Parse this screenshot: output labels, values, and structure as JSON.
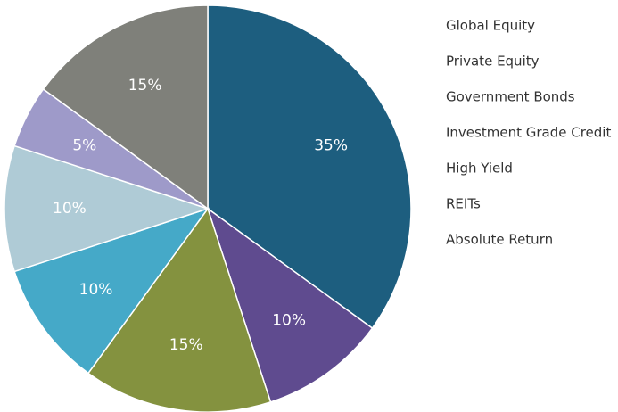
{
  "chart_data": {
    "type": "pie",
    "categories": [
      "Global Equity",
      "Private Equity",
      "Government Bonds",
      "Investment Grade Credit",
      "High Yield",
      "REITs",
      "Absolute Return"
    ],
    "values": [
      35,
      10,
      15,
      10,
      10,
      5,
      15
    ],
    "value_labels": [
      "35%",
      "10%",
      "15%",
      "10%",
      "10%",
      "5%",
      "15%"
    ],
    "colors": [
      "#1d5e7f",
      "#5f4b8f",
      "#84923f",
      "#45a9c8",
      "#afcbd6",
      "#9e9ac9",
      "#7f807a"
    ]
  }
}
